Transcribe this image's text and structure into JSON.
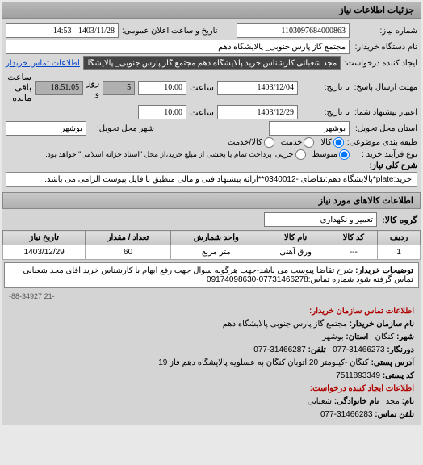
{
  "header": {
    "title": "جزئیات اطلاعات نیاز"
  },
  "form": {
    "request_number_label": "شماره نیاز:",
    "request_number": "1103097684000863",
    "announce_date_label": "تاریخ و ساعت اعلان عمومی:",
    "announce_date": "1403/11/28 - 14:53",
    "buyer_label": "نام دستگاه خریدار:",
    "buyer": "مجتمع گاز پارس جنوبی_ پالایشگاه دهم",
    "creator_label": "ایجاد کننده درخواست:",
    "creator": "مجد شعبانی کارشناس خرید پالایشگاه دهم مجتمع گاز پارس جنوبی_ پالایشگاه",
    "contact_link": "اطلاعات تماس خریدار",
    "deadline_label": "مهلت ارسال پاسخ:",
    "deadline_from": "تا تاریخ:",
    "deadline_date": "1403/12/04",
    "deadline_time_label": "ساعت",
    "deadline_time": "10:00",
    "remaining_days": "5",
    "remaining_days_label": "روز و",
    "remaining_time": "18:51:05",
    "remaining_label": "ساعت باقی مانده",
    "validity_label": "اعتبار پیشنهاد شما:",
    "validity_from": "تا تاریخ:",
    "validity_date": "1403/12/29",
    "validity_time": "10:00",
    "delivery_state_label": "استان محل تحویل:",
    "delivery_state": "بوشهر",
    "delivery_city_label": "شهر محل تحویل:",
    "delivery_city": "بوشهر",
    "package_label": "طبقه بندی موضوعی:",
    "package_options": {
      "goods": "کالا",
      "service": "خدمت",
      "goods_service": "کالا/خدمت"
    },
    "package_selected": "goods",
    "purchase_type_label": "نوع فرآیند خرید :",
    "purchase_options": {
      "medium": "متوسط",
      "small": "جزیی"
    },
    "purchase_selected": "medium",
    "purchase_note": "پرداخت تمام یا بخشی از مبلغ خرید،از محل \"اسناد خزانه اسلامی\" خواهد بود.",
    "desc_label": "شرح کلی نیاز:",
    "desc_text": "خرید:plate*پالایشگاه دهم:تقاضای -0340012**ارائه پیشنهاد فنی و مالی منطبق با فایل پیوست الزامی می باشد."
  },
  "goods": {
    "header": "اطلاعات کالاهای مورد نیاز",
    "group_label": "گروه کالا:",
    "group_value": "تعمیر و نگهداری",
    "columns": [
      "ردیف",
      "کد کالا",
      "نام کالا",
      "واحد شمارش",
      "تعداد / مقدار",
      "تاریخ نیاز"
    ],
    "rows": [
      [
        "1",
        "---",
        "ورق آهنی",
        "متر مربع",
        "60",
        "1403/12/29"
      ]
    ]
  },
  "note": {
    "label": "توضیحات خریدار:",
    "text": "شرح تقاضا پیوست می باشد-جهت هرگونه سوال جهت رفع ابهام با کارشناس خرید آقای مجد شعبانی تماس گرفته شود شماره تماس:07731466278-09174098630"
  },
  "reference": "-21 88-34927-",
  "contact": {
    "title": "اطلاعات تماس سازمان خریدار:",
    "org_label": "نام سازمان خریدار:",
    "org": "مجتمع گاز پارس جنوبی پالایشگاه دهم",
    "city_label": "شهر:",
    "city": "کنگان",
    "province_label": "استان:",
    "province": "بوشهر",
    "fax_label": "دورنگار:",
    "fax": "31466273-077",
    "tel_label": "تلفن:",
    "tel": "31466287-077",
    "address_label": "آدرس پستی:",
    "address": "کنگان -کیلومتر 20 اتوبان کنگان به عسلویه پالایشگاه دهم فاز 19",
    "postal_label": "کد پستی:",
    "postal": "7511893349",
    "creator_title": "اطلاعات ایجاد کننده درخواست:",
    "name_label": "نام:",
    "name": "مجد",
    "family_label": "نام خانوادگی:",
    "family": "شعبانی",
    "phone_label": "تلفن تماس:",
    "phone": "31466283-077"
  }
}
